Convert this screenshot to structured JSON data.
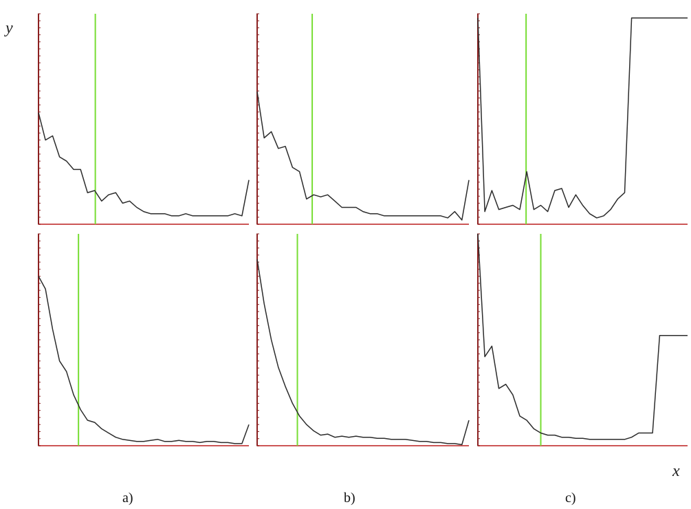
{
  "figure": {
    "y_axis_letter": "y",
    "x_axis_letter": "x",
    "column_labels": [
      "a)",
      "b)",
      "c)"
    ]
  },
  "colors": {
    "curve": "#2b2b2b",
    "marker_line": "#77dd33",
    "x_axis": "#cc5555",
    "y_axis": "#8b2020"
  },
  "chart_data": [
    {
      "type": "line",
      "column": "a)",
      "row": 1,
      "ylim": [
        0,
        1
      ],
      "marker_x": 0.27,
      "x": [
        0.0,
        0.033,
        0.067,
        0.1,
        0.133,
        0.167,
        0.2,
        0.233,
        0.267,
        0.3,
        0.333,
        0.367,
        0.4,
        0.433,
        0.467,
        0.5,
        0.533,
        0.567,
        0.6,
        0.633,
        0.667,
        0.7,
        0.733,
        0.767,
        0.8,
        0.833,
        0.867,
        0.9,
        0.933,
        0.967,
        1.0
      ],
      "values": [
        0.53,
        0.4,
        0.42,
        0.32,
        0.3,
        0.26,
        0.26,
        0.15,
        0.16,
        0.11,
        0.14,
        0.15,
        0.1,
        0.11,
        0.08,
        0.06,
        0.05,
        0.05,
        0.05,
        0.04,
        0.04,
        0.05,
        0.04,
        0.04,
        0.04,
        0.04,
        0.04,
        0.04,
        0.05,
        0.04,
        0.21
      ]
    },
    {
      "type": "line",
      "column": "b)",
      "row": 1,
      "ylim": [
        0,
        1
      ],
      "marker_x": 0.26,
      "x": [
        0.0,
        0.033,
        0.067,
        0.1,
        0.133,
        0.167,
        0.2,
        0.233,
        0.267,
        0.3,
        0.333,
        0.367,
        0.4,
        0.433,
        0.467,
        0.5,
        0.533,
        0.567,
        0.6,
        0.633,
        0.667,
        0.7,
        0.733,
        0.767,
        0.8,
        0.833,
        0.867,
        0.9,
        0.933,
        0.967,
        1.0
      ],
      "values": [
        0.63,
        0.41,
        0.44,
        0.36,
        0.37,
        0.27,
        0.25,
        0.12,
        0.14,
        0.13,
        0.14,
        0.11,
        0.08,
        0.08,
        0.08,
        0.06,
        0.05,
        0.05,
        0.04,
        0.04,
        0.04,
        0.04,
        0.04,
        0.04,
        0.04,
        0.04,
        0.04,
        0.03,
        0.06,
        0.02,
        0.21
      ]
    },
    {
      "type": "line",
      "column": "c)",
      "row": 1,
      "ylim": [
        0,
        1
      ],
      "marker_x": 0.23,
      "x": [
        0.0,
        0.033,
        0.067,
        0.1,
        0.133,
        0.167,
        0.2,
        0.233,
        0.267,
        0.3,
        0.333,
        0.367,
        0.4,
        0.433,
        0.467,
        0.5,
        0.533,
        0.567,
        0.6,
        0.633,
        0.667,
        0.7,
        0.733,
        0.767,
        0.8,
        0.833,
        0.867,
        0.9,
        0.933,
        0.967,
        1.0
      ],
      "values": [
        0.98,
        0.06,
        0.16,
        0.07,
        0.08,
        0.09,
        0.07,
        0.25,
        0.07,
        0.09,
        0.06,
        0.16,
        0.17,
        0.08,
        0.14,
        0.09,
        0.05,
        0.03,
        0.04,
        0.07,
        0.12,
        0.15,
        0.98,
        0.98,
        0.98,
        0.98,
        0.98,
        0.98,
        0.98,
        0.98,
        0.98
      ]
    },
    {
      "type": "line",
      "column": "a)",
      "row": 2,
      "ylim": [
        0,
        1
      ],
      "marker_x": 0.19,
      "x": [
        0.0,
        0.033,
        0.067,
        0.1,
        0.133,
        0.167,
        0.2,
        0.233,
        0.267,
        0.3,
        0.333,
        0.367,
        0.4,
        0.433,
        0.467,
        0.5,
        0.533,
        0.567,
        0.6,
        0.633,
        0.667,
        0.7,
        0.733,
        0.767,
        0.8,
        0.833,
        0.867,
        0.9,
        0.933,
        0.967,
        1.0
      ],
      "values": [
        0.8,
        0.74,
        0.55,
        0.4,
        0.35,
        0.24,
        0.17,
        0.12,
        0.11,
        0.08,
        0.06,
        0.04,
        0.03,
        0.025,
        0.02,
        0.02,
        0.025,
        0.03,
        0.02,
        0.02,
        0.025,
        0.02,
        0.02,
        0.015,
        0.02,
        0.02,
        0.015,
        0.015,
        0.01,
        0.01,
        0.1
      ]
    },
    {
      "type": "line",
      "column": "b)",
      "row": 2,
      "ylim": [
        0,
        1
      ],
      "marker_x": 0.19,
      "x": [
        0.0,
        0.033,
        0.067,
        0.1,
        0.133,
        0.167,
        0.2,
        0.233,
        0.267,
        0.3,
        0.333,
        0.367,
        0.4,
        0.433,
        0.467,
        0.5,
        0.533,
        0.567,
        0.6,
        0.633,
        0.667,
        0.7,
        0.733,
        0.767,
        0.8,
        0.833,
        0.867,
        0.9,
        0.933,
        0.967,
        1.0
      ],
      "values": [
        0.88,
        0.67,
        0.5,
        0.37,
        0.28,
        0.2,
        0.14,
        0.1,
        0.07,
        0.05,
        0.055,
        0.04,
        0.045,
        0.04,
        0.045,
        0.04,
        0.04,
        0.035,
        0.035,
        0.03,
        0.03,
        0.03,
        0.025,
        0.02,
        0.02,
        0.015,
        0.015,
        0.01,
        0.01,
        0.005,
        0.12
      ]
    },
    {
      "type": "line",
      "column": "c)",
      "row": 2,
      "ylim": [
        0,
        1
      ],
      "marker_x": 0.3,
      "x": [
        0.0,
        0.033,
        0.067,
        0.1,
        0.133,
        0.167,
        0.2,
        0.233,
        0.267,
        0.3,
        0.333,
        0.367,
        0.4,
        0.433,
        0.467,
        0.5,
        0.533,
        0.567,
        0.6,
        0.633,
        0.667,
        0.7,
        0.733,
        0.767,
        0.8,
        0.833,
        0.867,
        0.9,
        0.933,
        0.967,
        1.0
      ],
      "values": [
        1.0,
        0.42,
        0.47,
        0.27,
        0.29,
        0.24,
        0.14,
        0.12,
        0.08,
        0.06,
        0.05,
        0.05,
        0.04,
        0.04,
        0.035,
        0.035,
        0.03,
        0.03,
        0.03,
        0.03,
        0.03,
        0.03,
        0.04,
        0.06,
        0.06,
        0.06,
        0.52,
        0.52,
        0.52,
        0.52,
        0.52
      ]
    }
  ]
}
